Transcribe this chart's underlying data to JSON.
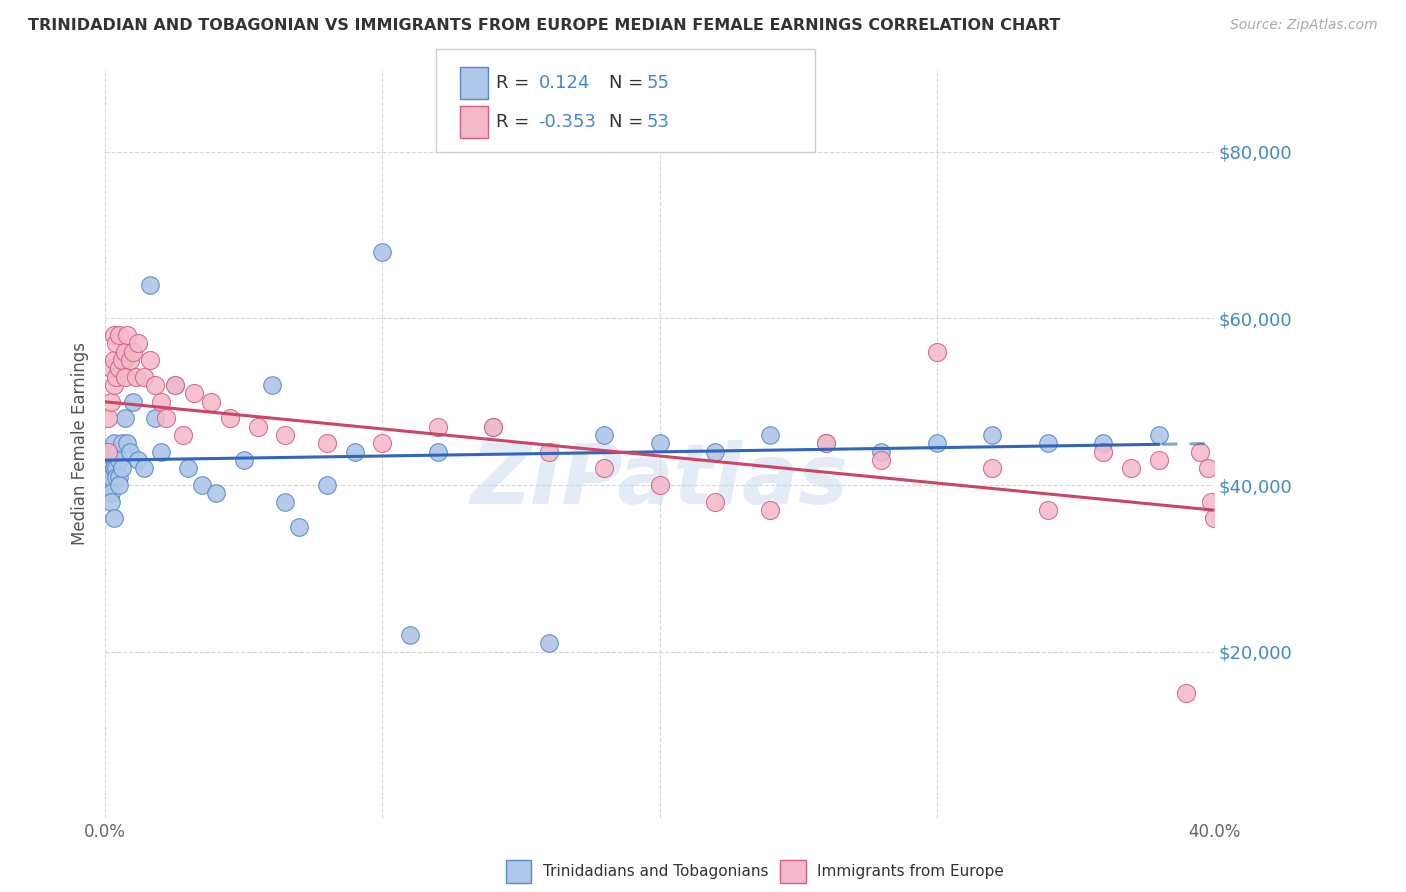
{
  "title": "TRINIDADIAN AND TOBAGONIAN VS IMMIGRANTS FROM EUROPE MEDIAN FEMALE EARNINGS CORRELATION CHART",
  "source": "Source: ZipAtlas.com",
  "ylabel": "Median Female Earnings",
  "y_ticks": [
    0,
    20000,
    40000,
    60000,
    80000
  ],
  "x_range": [
    0.0,
    0.4
  ],
  "y_range": [
    0,
    90000
  ],
  "blue_color": "#aec6e8",
  "pink_color": "#f5b8c8",
  "blue_edge_color": "#5588cc",
  "pink_edge_color": "#d06080",
  "blue_line_color": "#3366bb",
  "pink_line_color": "#cc4466",
  "R_blue": 0.124,
  "N_blue": 55,
  "R_pink": -0.353,
  "N_pink": 53,
  "legend_label_blue": "Trinidadians and Tobagonians",
  "legend_label_pink": "Immigrants from Europe",
  "text_color": "#333333",
  "label_color": "#4488cc",
  "background_color": "#ffffff",
  "grid_color": "#cccccc",
  "blue_points_x": [
    0.001,
    0.001,
    0.001,
    0.002,
    0.002,
    0.002,
    0.002,
    0.003,
    0.003,
    0.003,
    0.003,
    0.004,
    0.004,
    0.004,
    0.005,
    0.005,
    0.005,
    0.006,
    0.006,
    0.007,
    0.007,
    0.008,
    0.009,
    0.01,
    0.012,
    0.014,
    0.016,
    0.018,
    0.02,
    0.025,
    0.03,
    0.035,
    0.04,
    0.05,
    0.06,
    0.065,
    0.07,
    0.08,
    0.09,
    0.1,
    0.11,
    0.12,
    0.14,
    0.16,
    0.18,
    0.2,
    0.22,
    0.24,
    0.26,
    0.28,
    0.3,
    0.32,
    0.34,
    0.36,
    0.38
  ],
  "blue_points_y": [
    44000,
    42000,
    40000,
    43000,
    41000,
    39000,
    38000,
    45000,
    43000,
    42000,
    36000,
    44000,
    42000,
    41000,
    43000,
    41000,
    40000,
    45000,
    42000,
    55000,
    48000,
    45000,
    44000,
    50000,
    43000,
    42000,
    64000,
    48000,
    44000,
    52000,
    42000,
    40000,
    39000,
    43000,
    52000,
    38000,
    35000,
    40000,
    44000,
    68000,
    22000,
    44000,
    47000,
    21000,
    46000,
    45000,
    44000,
    46000,
    45000,
    44000,
    45000,
    46000,
    45000,
    45000,
    46000
  ],
  "pink_points_x": [
    0.001,
    0.001,
    0.002,
    0.002,
    0.003,
    0.003,
    0.003,
    0.004,
    0.004,
    0.005,
    0.005,
    0.006,
    0.007,
    0.007,
    0.008,
    0.009,
    0.01,
    0.011,
    0.012,
    0.014,
    0.016,
    0.018,
    0.02,
    0.022,
    0.025,
    0.028,
    0.032,
    0.038,
    0.045,
    0.055,
    0.065,
    0.08,
    0.1,
    0.12,
    0.14,
    0.16,
    0.18,
    0.2,
    0.22,
    0.24,
    0.26,
    0.28,
    0.3,
    0.32,
    0.34,
    0.36,
    0.37,
    0.38,
    0.39,
    0.395,
    0.398,
    0.399,
    0.4
  ],
  "pink_points_y": [
    48000,
    44000,
    54000,
    50000,
    58000,
    55000,
    52000,
    57000,
    53000,
    58000,
    54000,
    55000,
    56000,
    53000,
    58000,
    55000,
    56000,
    53000,
    57000,
    53000,
    55000,
    52000,
    50000,
    48000,
    52000,
    46000,
    51000,
    50000,
    48000,
    47000,
    46000,
    45000,
    45000,
    47000,
    47000,
    44000,
    42000,
    40000,
    38000,
    37000,
    45000,
    43000,
    56000,
    42000,
    37000,
    44000,
    42000,
    43000,
    15000,
    44000,
    42000,
    38000,
    36000
  ]
}
